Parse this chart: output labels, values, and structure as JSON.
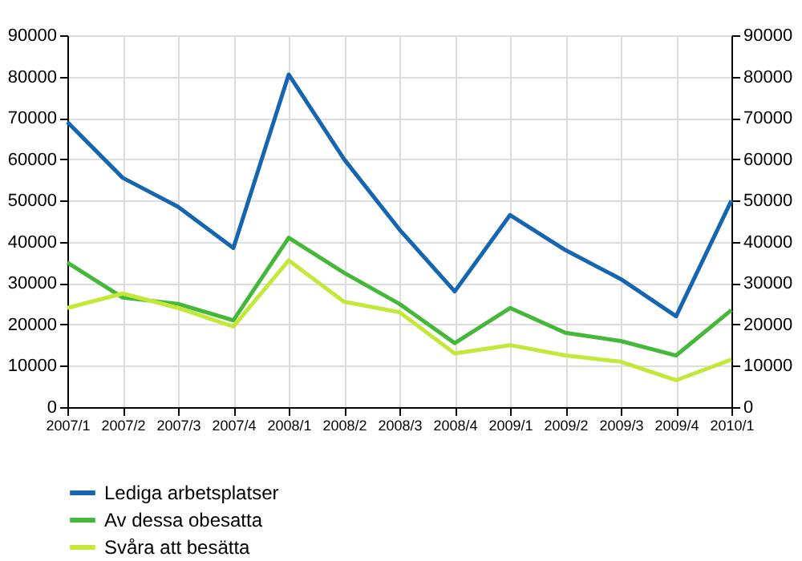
{
  "chart_data": {
    "type": "line",
    "categories": [
      "2007/1",
      "2007/2",
      "2007/3",
      "2007/4",
      "2008/1",
      "2008/2",
      "2008/3",
      "2008/4",
      "2009/1",
      "2009/2",
      "2009/3",
      "2009/4",
      "2010/1"
    ],
    "series": [
      {
        "name": "Lediga arbetsplatser",
        "color": "#1565b0",
        "values": [
          69000,
          55500,
          48500,
          38500,
          80500,
          60000,
          43000,
          28000,
          46500,
          38000,
          31000,
          22000,
          50000
        ]
      },
      {
        "name": "Av dessa obesatta",
        "color": "#45b83a",
        "values": [
          35000,
          26500,
          25000,
          21000,
          41000,
          32500,
          25000,
          15500,
          24000,
          18000,
          16000,
          12500,
          23500
        ]
      },
      {
        "name": "Svåra att besätta",
        "color": "#c4e83a",
        "values": [
          24000,
          27500,
          24000,
          19500,
          35500,
          25500,
          23000,
          13000,
          15000,
          12500,
          11000,
          6500,
          11500
        ]
      }
    ],
    "ylim": [
      0,
      90000
    ],
    "yticks": [
      0,
      10000,
      20000,
      30000,
      40000,
      50000,
      60000,
      70000,
      80000,
      90000
    ],
    "y2lim": [
      0,
      90000
    ],
    "y2ticks": [
      0,
      10000,
      20000,
      30000,
      40000,
      50000,
      60000,
      70000,
      80000,
      90000
    ],
    "grid": true,
    "legend": "bottom",
    "marker": "none",
    "line_style": "solid"
  }
}
